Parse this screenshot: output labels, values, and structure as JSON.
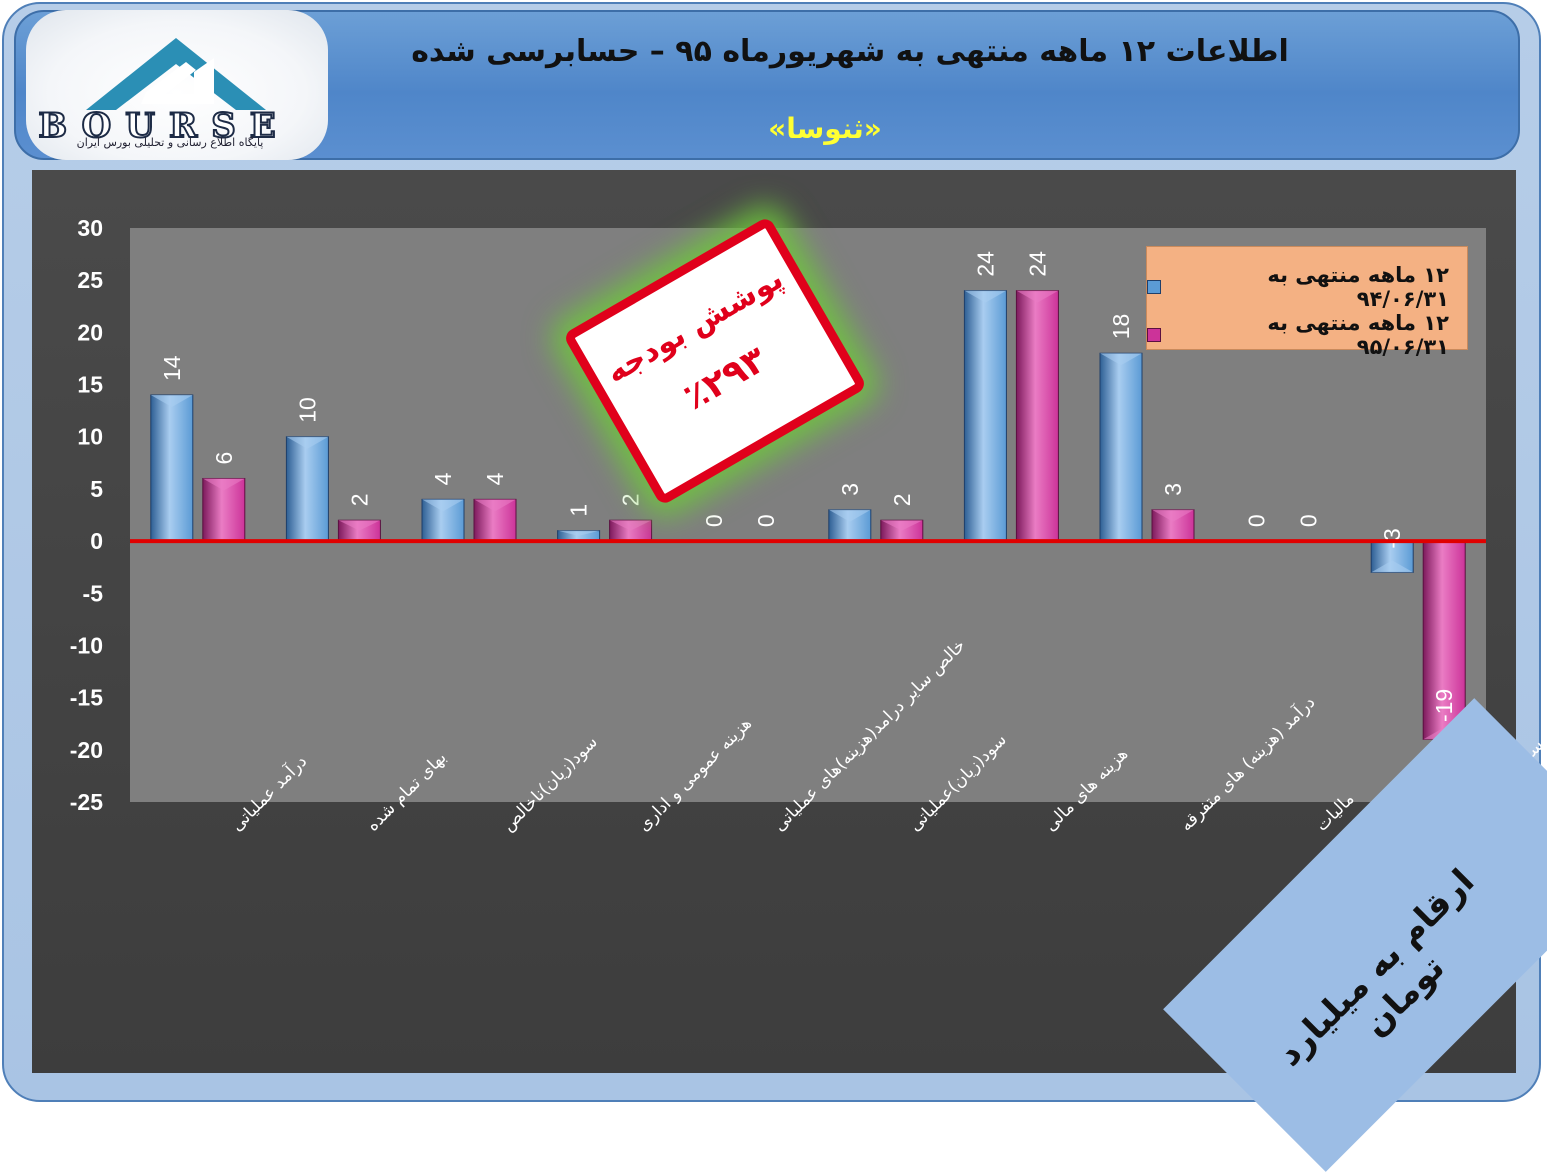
{
  "header": {
    "title": "اطلاعات ۱۲ ماهه منتهی به شهریورماه ۹۵ – حسابرسی شده",
    "subtitle": "«ثنوسا»",
    "logo_text": "BOURSE",
    "logo_tagline": "پایگاه اطلاع رسانی و تحلیلی بورس ایران"
  },
  "badge": {
    "line1": "پوشش بودجه",
    "line2": "٪۲۹۳"
  },
  "units_note": "ارقام به میلیارد تومان",
  "colors": {
    "series_1": "#5b9bd5",
    "series_2": "#cc3399",
    "zero_line": "#e00000",
    "legend_bg": "#f4b183",
    "subtitle": "#ffff33",
    "badge": "#e0001b"
  },
  "chart_data": {
    "type": "bar",
    "categories": [
      "درآمد عملیاتی",
      "بهای تمام شده",
      "سود(زیان)ناخالص",
      "هزینه عمومی و اداری",
      "خالص سایر درامد(هزینه)های عملیاتی",
      "سود(زیان)عملیاتی",
      "هزینه های مالی",
      "درآمد (هزینه) های متفرقه",
      "مالیات",
      "سود(زیان) خالص"
    ],
    "series": [
      {
        "name": "۱۲ ماهه منتهی به ۹۴/۰۶/۳۱",
        "values": [
          14,
          10,
          4,
          1,
          0,
          3,
          24,
          18,
          0,
          -3
        ]
      },
      {
        "name": "۱۲ ماهه منتهی به ۹۵/۰۶/۳۱",
        "values": [
          6,
          2,
          4,
          2,
          0,
          2,
          24,
          3,
          0,
          -19
        ]
      }
    ],
    "ylim": [
      -25,
      30
    ],
    "yticks": [
      30,
      25,
      20,
      15,
      10,
      5,
      0,
      -5,
      -10,
      -15,
      -20,
      -25
    ],
    "grid": false,
    "legend_position": "top-right"
  }
}
